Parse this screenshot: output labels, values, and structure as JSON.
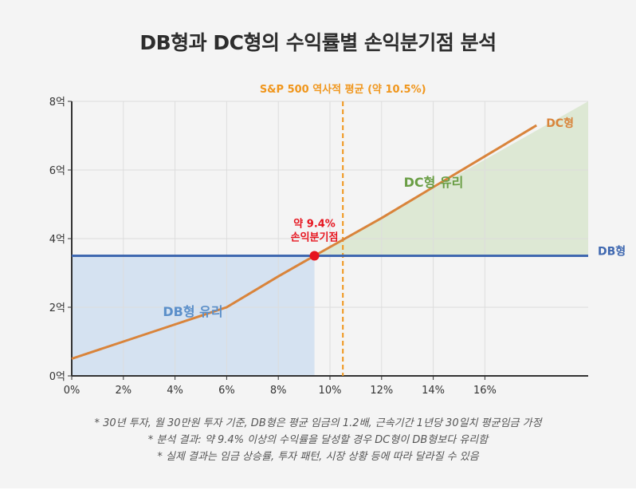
{
  "chart_data": {
    "type": "line",
    "title": "DB형과 DC형의 수익률별 손익분기점 분석",
    "xlabel": "",
    "ylabel": "",
    "xlim": [
      0,
      20
    ],
    "ylim": [
      0,
      8
    ],
    "x_ticks": [
      0,
      2,
      4,
      6,
      8,
      10,
      12,
      14,
      16
    ],
    "x_tick_labels": [
      "0%",
      "2%",
      "4%",
      "6%",
      "8%",
      "10%",
      "12%",
      "14%",
      "16%"
    ],
    "y_ticks": [
      0,
      2,
      4,
      6,
      8
    ],
    "y_tick_labels": [
      "0억",
      "2억",
      "4억",
      "6억",
      "8억"
    ],
    "grid": true,
    "series": [
      {
        "name": "DC형",
        "color": "#d9843b",
        "x": [
          0,
          2,
          4,
          6,
          8,
          9.4,
          12,
          14,
          16,
          18
        ],
        "y": [
          0.5,
          1.0,
          1.5,
          2.0,
          2.9,
          3.5,
          4.6,
          5.5,
          6.4,
          7.3
        ]
      },
      {
        "name": "DB형",
        "color": "#3f68b0",
        "x": [
          0,
          20
        ],
        "y": [
          3.5,
          3.5
        ]
      }
    ],
    "regions": [
      {
        "label": "DB형 유리",
        "color": "#5b8fc9",
        "fill": "#d5e2f1"
      },
      {
        "label": "DC형 유리",
        "color": "#6a9e45",
        "fill": "#dde8d4"
      }
    ],
    "reference_line": {
      "x": 10.5,
      "label": "S&P 500 역사적 평균 (약 10.5%)",
      "color": "#f0961c"
    },
    "breakeven": {
      "x": 9.4,
      "y": 3.5,
      "label_line1": "약 9.4%",
      "label_line2": "손익분기점",
      "color": "#e6141e"
    }
  },
  "notes": [
    "* 30년 투자, 월 30만원 투자 기준, DB형은 평균 임금의 1.2배, 근속기간 1년당 30일치 평균임금 가정",
    "* 분석 결과: 약 9.4% 이상의 수익률을 달성할 경우 DC형이 DB형보다 유리함",
    "* 실제 결과는 임금 상승률, 투자 패턴, 시장 상황 등에 따라 달라질 수 있음"
  ]
}
